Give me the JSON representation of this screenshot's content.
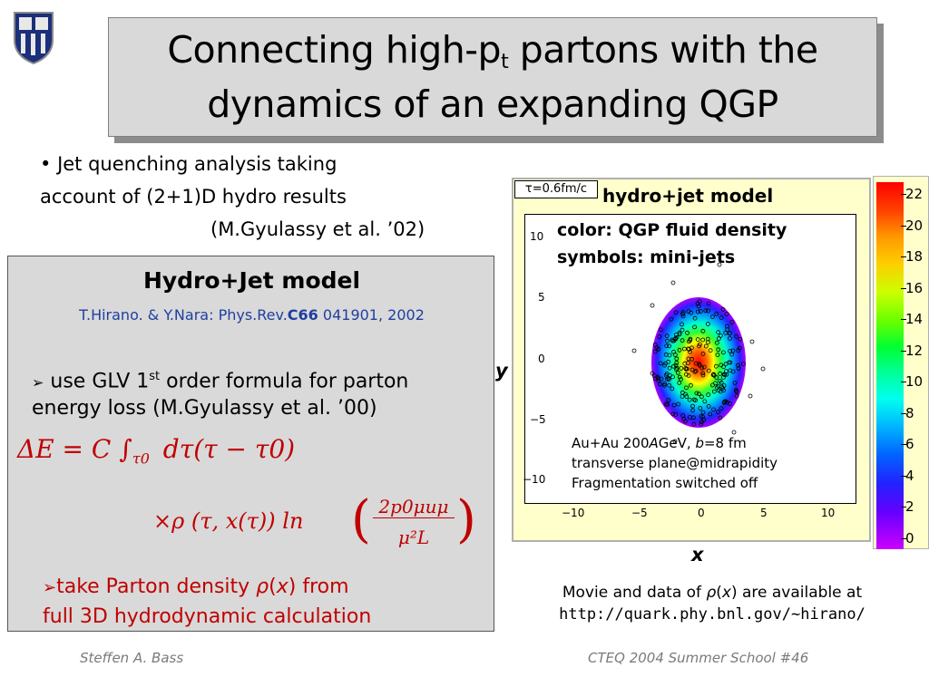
{
  "title": {
    "line1_pre": "Connecting high-p",
    "line1_sub": "t",
    "line1_post": " partons with the",
    "line2": "dynamics of an expanding QGP"
  },
  "bullet": {
    "marker": "•",
    "line1": " Jet quenching analysis taking",
    "line2": "account of (2+1)D hydro results",
    "line3": "(M.Gyulassy et al. ’02)"
  },
  "model_box": {
    "heading": "Hydro+Jet model",
    "ref_pre": "T.Hirano. & Y.Nara: Phys.Rev.",
    "ref_bold": "C66",
    "ref_post": " 041901, 2002",
    "glv_marker": "➢",
    "glv_line1_pre": " use GLV 1",
    "glv_sup": "st",
    "glv_line1_post": " order formula for parton",
    "glv_line2": "energy loss (M.Gyulassy et al. ’00)",
    "eq1": "ΔE  =  C ∫",
    "eq1_sub": "τ0",
    "eq1_rest": "dτ(τ − τ0)",
    "eq2": "×ρ (τ, x(τ)) ln",
    "eq2_num": "2p0μuμ",
    "eq2_den": "μ²L",
    "parton_marker": "➢",
    "parton_line1_pre": "take Parton density ",
    "parton_rho": "ρ",
    "parton_x": "x",
    "parton_line1_post": " from",
    "parton_line2": "full 3D hydrodynamic calculation"
  },
  "plot": {
    "tau_label": "τ=0.6fm/c",
    "title": "hydro+jet model",
    "legend_line1": "color: QGP fluid density",
    "legend_line2": "symbols: mini-jets",
    "info_line1_pre": "Au+Au 200",
    "info_line1_A": "A",
    "info_line1_mid": "GeV, ",
    "info_line1_b": "b",
    "info_line1_post": "=8 fm",
    "info_line2": "transverse plane@midrapidity",
    "info_line3": "Fragmentation switched off",
    "x_axis_label": "x",
    "y_axis_label": "y",
    "x_ticks": [
      "−10",
      "−5",
      "0",
      "5",
      "10"
    ],
    "y_ticks": [
      "10",
      "5",
      "0",
      "−5",
      "−10"
    ],
    "colorbar_ticks": [
      "22",
      "20",
      "18",
      "16",
      "14",
      "12",
      "10",
      "8",
      "6",
      "4",
      "2",
      "0"
    ]
  },
  "movie": {
    "line1_pre": "Movie and data of ",
    "rho": "ρ",
    "x": "x",
    "line1_post": " are available at",
    "url": "http://quark.phy.bnl.gov/~hirano/"
  },
  "footer": {
    "left": "Steffen A. Bass",
    "right": "CTEQ 2004 Summer School  #46"
  },
  "colors": {
    "accent_red": "#c00000",
    "ref_blue": "#1f3fa0",
    "panel_gray": "#d9d9d9",
    "plot_frame": "#ffffcc"
  }
}
